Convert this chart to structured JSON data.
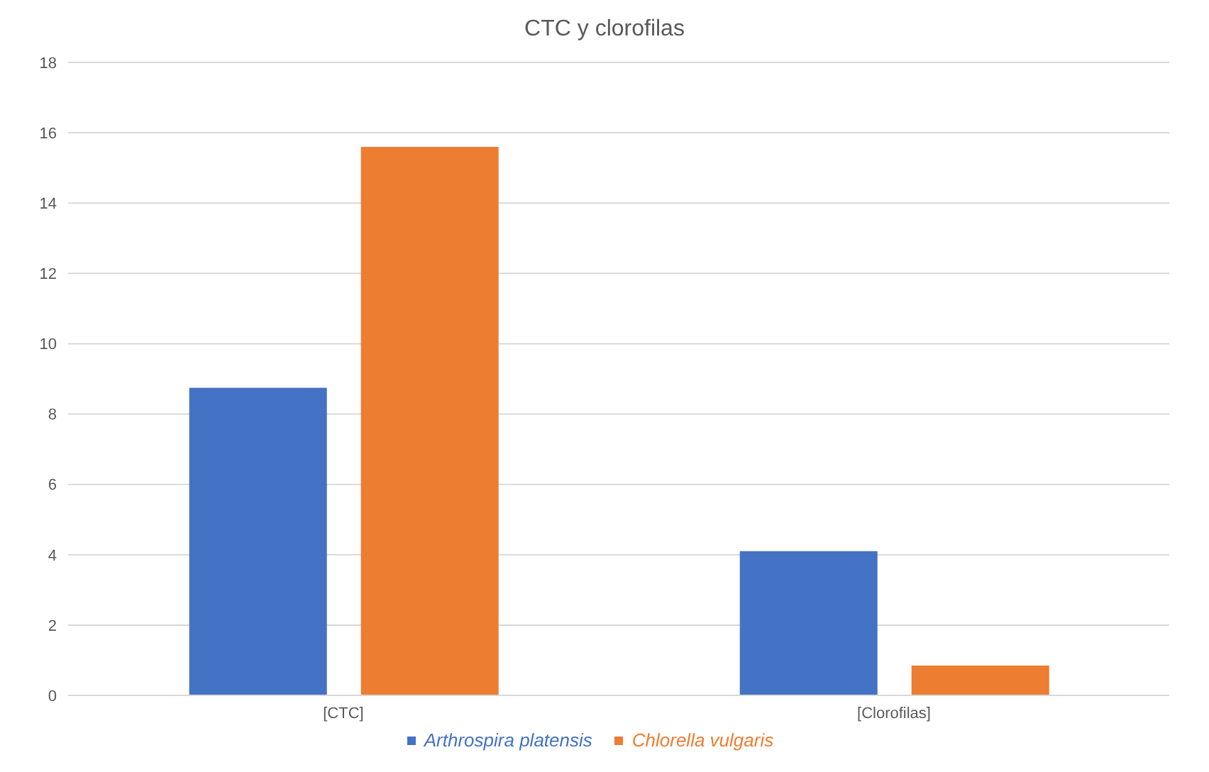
{
  "chart_data": {
    "type": "bar",
    "title": "CTC y clorofilas",
    "categories": [
      "[CTC]",
      "[Clorofilas]"
    ],
    "series": [
      {
        "name": "Arthrospira platensis",
        "color": "#4472c4",
        "values": [
          8.75,
          4.1
        ]
      },
      {
        "name": "Chlorella vulgaris",
        "color": "#ed7d31",
        "values": [
          15.6,
          0.85
        ]
      }
    ],
    "ylim": [
      0,
      18
    ],
    "yticks": [
      0,
      2,
      4,
      6,
      8,
      10,
      12,
      14,
      16,
      18
    ],
    "grid": "y",
    "legend": "bottom"
  }
}
